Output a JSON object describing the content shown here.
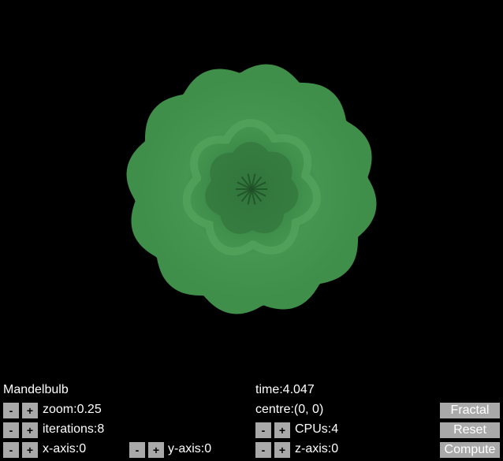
{
  "render": {
    "colors": {
      "background": "#000000",
      "bulb_fill": "#3f8f4a",
      "bulb_shadow": "#2f6f39",
      "bulb_highlight": "#52a35c"
    }
  },
  "info": {
    "fractal_name": "Mandelbulb",
    "time_label": "time:",
    "time_value": "4.047"
  },
  "controls": {
    "zoom": {
      "label": "zoom:",
      "value": "0.25"
    },
    "iterations": {
      "label": "iterations:",
      "value": "8"
    },
    "x_axis": {
      "label": "x-axis:",
      "value": "0"
    },
    "y_axis": {
      "label": "y-axis:",
      "value": "0"
    },
    "centre": {
      "label": "centre:",
      "value": "(0, 0)"
    },
    "cpus": {
      "label": "CPUs:",
      "value": "4"
    },
    "z_axis": {
      "label": "z-axis:",
      "value": "0"
    },
    "minus_label": "-",
    "plus_label": "+"
  },
  "actions": {
    "fractal": "Fractal",
    "reset": "Reset",
    "compute": "Compute"
  }
}
